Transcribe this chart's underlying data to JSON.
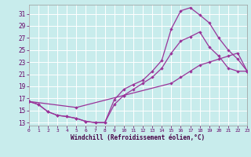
{
  "xlabel": "Windchill (Refroidissement éolien,°C)",
  "bg_color": "#c8ecec",
  "grid_color": "#ffffff",
  "line_color": "#993399",
  "xlim": [
    0,
    23
  ],
  "ylim": [
    12.5,
    32.5
  ],
  "xticks": [
    0,
    1,
    2,
    3,
    4,
    5,
    6,
    7,
    8,
    9,
    10,
    11,
    12,
    13,
    14,
    15,
    16,
    17,
    18,
    19,
    20,
    21,
    22,
    23
  ],
  "yticks": [
    13,
    15,
    17,
    19,
    21,
    23,
    25,
    27,
    29,
    31
  ],
  "curve1_x": [
    0,
    1,
    2,
    3,
    4,
    5,
    6,
    7,
    8,
    9,
    10,
    11,
    12,
    13,
    14,
    15,
    16,
    17,
    18,
    19,
    20,
    21,
    22,
    23
  ],
  "curve1_y": [
    16.5,
    16.0,
    14.8,
    14.2,
    14.0,
    13.7,
    13.2,
    13.0,
    13.0,
    16.8,
    18.5,
    19.3,
    20.0,
    21.5,
    23.3,
    28.5,
    31.5,
    32.0,
    30.8,
    29.5,
    27.0,
    25.0,
    23.5,
    21.5
  ],
  "curve2_x": [
    0,
    1,
    2,
    3,
    4,
    5,
    6,
    7,
    8,
    9,
    10,
    11,
    12,
    13,
    14,
    15,
    16,
    17,
    18,
    19,
    20,
    21,
    22,
    23
  ],
  "curve2_y": [
    16.5,
    16.0,
    14.8,
    14.2,
    14.0,
    13.7,
    13.2,
    13.0,
    13.0,
    16.0,
    17.5,
    18.5,
    19.5,
    20.5,
    22.0,
    24.5,
    26.5,
    27.2,
    28.0,
    25.5,
    24.0,
    22.0,
    21.5,
    21.5
  ],
  "curve3_x": [
    0,
    5,
    10,
    15,
    16,
    17,
    18,
    19,
    20,
    21,
    22,
    23
  ],
  "curve3_y": [
    16.5,
    15.5,
    17.5,
    19.5,
    20.5,
    21.5,
    22.5,
    23.0,
    23.5,
    24.0,
    24.5,
    21.5
  ]
}
